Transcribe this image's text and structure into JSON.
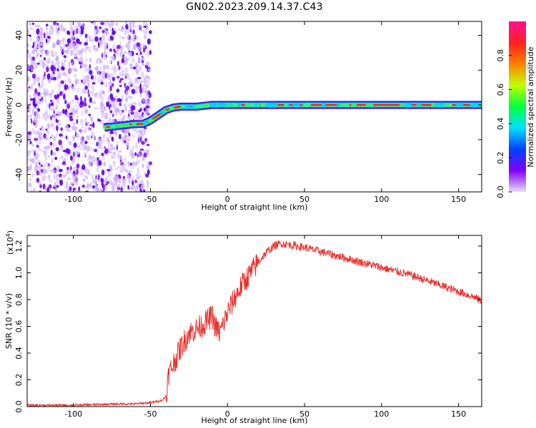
{
  "page": {
    "title": "GN02.2023.209.14.37.C43"
  },
  "chart_data": [
    {
      "type": "heatmap",
      "title": "GN02.2023.209.14.37.C43",
      "xlabel": "Height of straight line (km)",
      "ylabel": "Frequency (Hz)",
      "xlim": [
        -130,
        165
      ],
      "ylim": [
        -50,
        48
      ],
      "x_ticks": [
        -100,
        -50,
        0,
        50,
        100,
        150
      ],
      "y_ticks": [
        -40,
        -20,
        0,
        20,
        40
      ],
      "track": {
        "description_points_x": [
          -80,
          -70,
          -60,
          -55,
          -50,
          -45,
          -40,
          -35,
          -30,
          -20,
          -15,
          -10,
          0,
          50,
          100,
          165
        ],
        "description_points_y": [
          -13,
          -12,
          -11,
          -11,
          -9,
          -6,
          -3,
          -1.5,
          -1,
          -1,
          -0.5,
          0,
          0,
          0,
          0,
          0
        ]
      },
      "noise_region_x": [
        -130,
        -50
      ],
      "colorbar": {
        "label": "Normalized spectral amplitude",
        "ticks": [
          0.0,
          0.2,
          0.4,
          0.6,
          0.8
        ],
        "range": [
          0,
          1
        ],
        "colors": [
          "#e8dcff",
          "#8000ff",
          "#0040ff",
          "#00e0ff",
          "#00ff40",
          "#c0ff00",
          "#ff8000",
          "#ff2020",
          "#ff1090"
        ]
      }
    },
    {
      "type": "line",
      "xlabel": "Height of straight line (km)",
      "ylabel": "SNR (10 * v/v)",
      "y_multiplier": "(x10",
      "y_multiplier_exp": "4",
      "y_multiplier_close": ")",
      "xlim": [
        -130,
        165
      ],
      "ylim": [
        0,
        1.28
      ],
      "x_ticks": [
        -100,
        -50,
        0,
        50,
        100,
        150
      ],
      "y_ticks": [
        0.0,
        0.2,
        0.4,
        0.6,
        0.8,
        1.0,
        1.2
      ],
      "color": "#e8322e",
      "series": [
        {
          "x": [
            -130,
            -100,
            -70,
            -60,
            -50,
            -45,
            -42,
            -40,
            -38,
            -35,
            -30,
            -25,
            -20,
            -15,
            -10,
            -8,
            -5,
            0,
            5,
            10,
            15,
            20,
            25,
            30,
            35,
            40,
            50,
            60,
            70,
            80,
            90,
            100,
            110,
            120,
            130,
            140,
            150,
            160,
            165
          ],
          "y": [
            0.01,
            0.01,
            0.02,
            0.02,
            0.03,
            0.04,
            0.05,
            0.08,
            0.25,
            0.32,
            0.45,
            0.55,
            0.58,
            0.62,
            0.68,
            0.6,
            0.55,
            0.7,
            0.82,
            0.92,
            1.0,
            1.08,
            1.15,
            1.2,
            1.22,
            1.21,
            1.19,
            1.16,
            1.13,
            1.1,
            1.07,
            1.04,
            1.01,
            0.98,
            0.94,
            0.9,
            0.86,
            0.82,
            0.79
          ]
        }
      ]
    }
  ]
}
